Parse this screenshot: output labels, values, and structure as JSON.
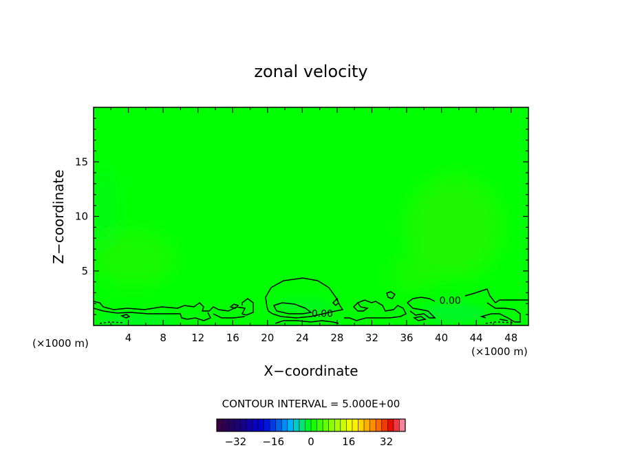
{
  "chart_data": {
    "type": "heatmap",
    "title": "zonal velocity",
    "xlabel": "X−coordinate",
    "ylabel": "Z−coordinate",
    "xunit_left": "(×1000 m)",
    "xunit_right": "(×1000 m)",
    "xlim": [
      0,
      50
    ],
    "ylim": [
      0,
      20
    ],
    "xticks": [
      4,
      8,
      12,
      16,
      20,
      24,
      28,
      32,
      36,
      40,
      44,
      48
    ],
    "yticks": [
      5,
      10,
      15
    ],
    "contour_labels": [
      {
        "text": "0.00",
        "x": 26.3,
        "z": 1.1
      },
      {
        "text": "0.00",
        "x": 41.0,
        "z": 2.3
      }
    ],
    "contour_interval_text": "CONTOUR INTERVAL = 5.000E+00",
    "colorbar": {
      "min": -40,
      "max": 40,
      "step": 5,
      "tick_labels": [
        {
          "value": -32,
          "text": "−32"
        },
        {
          "value": -16,
          "text": "−16"
        },
        {
          "value": 0,
          "text": "0"
        },
        {
          "value": 16,
          "text": "16"
        },
        {
          "value": 32,
          "text": "32"
        }
      ]
    },
    "field_color": "#00ff00",
    "weak_positive_color": "#40f000",
    "weak_negative_color": "#00f040"
  }
}
